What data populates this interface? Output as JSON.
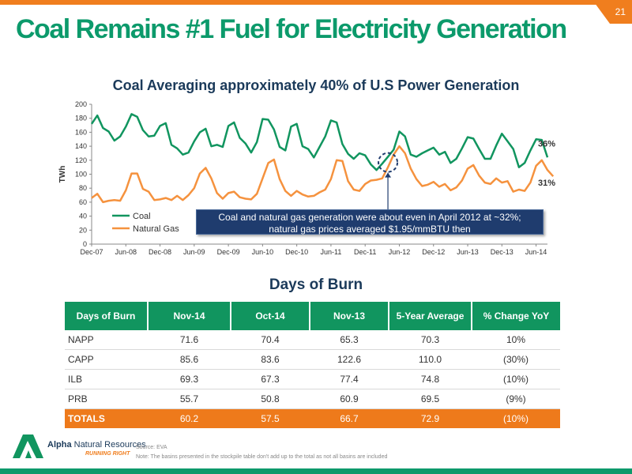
{
  "page_number": "21",
  "slide_title": "Coal Remains #1 Fuel for Electricity Generation",
  "chart_data": {
    "type": "line",
    "title": "Coal Averaging approximately 40% of U.S Power Generation",
    "ylabel": "TWh",
    "ylim": [
      0,
      200
    ],
    "yticks": [
      0,
      20,
      40,
      60,
      80,
      100,
      120,
      140,
      160,
      180,
      200
    ],
    "x_ticks": [
      "Dec-07",
      "Jun-08",
      "Dec-08",
      "Jun-09",
      "Dec-09",
      "Jun-10",
      "Dec-10",
      "Jun-11",
      "Dec-11",
      "Jun-12",
      "Dec-12",
      "Jun-13",
      "Dec-13",
      "Jun-14"
    ],
    "x_start": "Dec-07",
    "grid": false,
    "legend_position": "bottom-left",
    "series": [
      {
        "name": "Coal",
        "color": "#11955f",
        "values": [
          172,
          184,
          166,
          161,
          148,
          154,
          168,
          186,
          182,
          163,
          154,
          155,
          169,
          173,
          142,
          137,
          128,
          131,
          147,
          160,
          165,
          140,
          142,
          139,
          169,
          174,
          152,
          144,
          131,
          146,
          179,
          178,
          164,
          139,
          134,
          168,
          172,
          140,
          136,
          124,
          139,
          154,
          177,
          174,
          143,
          129,
          122,
          130,
          127,
          114,
          106,
          115,
          125,
          135,
          161,
          154,
          128,
          125,
          130,
          134,
          138,
          128,
          132,
          116,
          122,
          137,
          153,
          151,
          136,
          122,
          122,
          141,
          158,
          147,
          136,
          110,
          116,
          134,
          150,
          149,
          124
        ]
      },
      {
        "name": "Natural Gas",
        "color": "#f5923e",
        "values": [
          66,
          72,
          60,
          62,
          63,
          62,
          77,
          101,
          101,
          79,
          75,
          63,
          64,
          66,
          63,
          69,
          63,
          70,
          80,
          101,
          109,
          94,
          73,
          65,
          73,
          75,
          67,
          65,
          64,
          72,
          94,
          116,
          121,
          93,
          76,
          69,
          76,
          71,
          68,
          69,
          74,
          78,
          93,
          120,
          119,
          90,
          78,
          76,
          86,
          91,
          92,
          94,
          110,
          128,
          140,
          130,
          108,
          93,
          83,
          85,
          89,
          82,
          86,
          77,
          81,
          91,
          108,
          113,
          98,
          88,
          86,
          94,
          88,
          90,
          75,
          78,
          76,
          88,
          112,
          120,
          106,
          97
        ]
      }
    ],
    "annotations": [
      {
        "text": "36%",
        "series": "Coal"
      },
      {
        "text": "31%",
        "series": "Natural Gas"
      },
      {
        "text": "Coal and natural gas generation were about even in April 2012 at ~32%; natural gas prices averaged $1.95/mmBTU then",
        "point": "Apr-12"
      }
    ]
  },
  "callout": {
    "line1": "Coal and natural gas generation were about even in April 2012 at ~32%;",
    "line2": "natural gas prices averaged $1.95/mmBTU then"
  },
  "table": {
    "title": "Days of Burn",
    "headers": [
      "Days of Burn",
      "Nov-14",
      "Oct-14",
      "Nov-13",
      "5-Year Average",
      "% Change YoY"
    ],
    "rows": [
      [
        "NAPP",
        "71.6",
        "70.4",
        "65.3",
        "70.3",
        "10%"
      ],
      [
        "CAPP",
        "85.6",
        "83.6",
        "122.6",
        "110.0",
        "(30%)"
      ],
      [
        "ILB",
        "69.3",
        "67.3",
        "77.4",
        "74.8",
        "(10%)"
      ],
      [
        "PRB",
        "55.7",
        "50.8",
        "60.9",
        "69.5",
        "(9%)"
      ]
    ],
    "totals": [
      "TOTALS",
      "60.2",
      "57.5",
      "66.7",
      "72.9",
      "(10%)"
    ]
  },
  "footer": {
    "company_bold": "Alpha",
    "company_rest": "Natural Resources",
    "tagline": "RUNNING RIGHT",
    "source": "Source: EVA",
    "note": "Note: The basins presented in the stockpile table don't add up to the total as not all basins are included"
  },
  "colors": {
    "accent_green": "#0c9a6b",
    "accent_orange": "#f07e1e",
    "navy": "#1b3a5a"
  }
}
